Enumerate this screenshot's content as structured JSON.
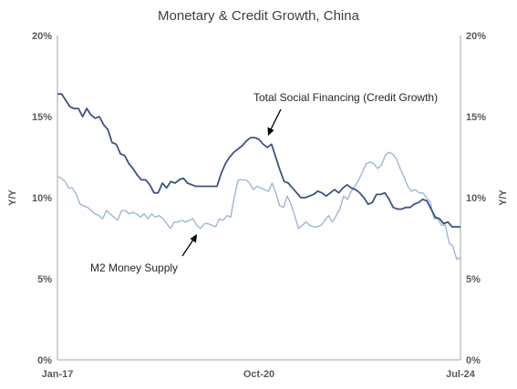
{
  "chart_data": {
    "type": "line",
    "title": "Monetary & Credit Growth, China",
    "ylabel_left": "Y/Y",
    "ylabel_right": "Y/Y",
    "ylim": [
      0,
      20
    ],
    "yticks": [
      0,
      5,
      10,
      15,
      20
    ],
    "ytick_labels": [
      "0%",
      "5%",
      "10%",
      "15%",
      "20%"
    ],
    "xlim": [
      "2017-01",
      "2024-07"
    ],
    "xticks": [
      "2017-01",
      "2020-10",
      "2024-07"
    ],
    "xtick_labels": [
      "Jan-17",
      "Oct-20",
      "Jul-24"
    ],
    "grid": false,
    "colors": {
      "tsf": "#3b5581",
      "m2": "#9fb6d9",
      "axis": "#a6a6a6",
      "text": "#595959"
    },
    "annotations": {
      "tsf": "Total Social Financing (Credit Growth)",
      "m2": "M2 Money Supply"
    },
    "series": [
      {
        "key": "tsf",
        "values": [
          16.4,
          16.4,
          16.0,
          15.6,
          15.5,
          15.5,
          15.0,
          15.5,
          15.1,
          14.9,
          15.0,
          14.5,
          14.2,
          13.4,
          13.3,
          12.7,
          12.6,
          12.1,
          11.8,
          11.4,
          11.1,
          11.1,
          10.8,
          10.3,
          10.3,
          10.9,
          10.6,
          11.0,
          10.9,
          11.1,
          11.2,
          10.9,
          10.8,
          10.7,
          10.7,
          10.7,
          10.7,
          10.7,
          10.7,
          11.5,
          12.1,
          12.5,
          12.8,
          13.0,
          13.2,
          13.5,
          13.7,
          13.7,
          13.6,
          13.3,
          13.1,
          13.3,
          12.5,
          11.7,
          11.0,
          10.9,
          10.6,
          10.3,
          10.0,
          10.0,
          10.1,
          10.2,
          10.4,
          10.3,
          10.1,
          10.3,
          10.5,
          10.3,
          10.6,
          10.8,
          10.6,
          10.5,
          10.3,
          10.0,
          9.6,
          9.7,
          10.2,
          10.2,
          10.3,
          9.9,
          9.4,
          9.3,
          9.3,
          9.4,
          9.4,
          9.6,
          9.7,
          9.9,
          9.8,
          9.3,
          8.8,
          8.7,
          8.4,
          8.5,
          8.2,
          8.2,
          8.2
        ]
      },
      {
        "key": "m2",
        "values": [
          11.3,
          11.2,
          11.0,
          10.6,
          10.6,
          10.2,
          9.6,
          9.5,
          9.4,
          9.2,
          9.0,
          8.9,
          8.7,
          9.2,
          9.0,
          8.8,
          8.6,
          9.2,
          9.2,
          9.0,
          9.1,
          9.0,
          8.8,
          9.0,
          8.7,
          9.0,
          8.8,
          8.9,
          8.7,
          8.4,
          8.1,
          8.5,
          8.5,
          8.6,
          8.5,
          8.6,
          8.7,
          8.3,
          8.1,
          8.4,
          8.4,
          8.3,
          8.2,
          8.7,
          8.6,
          8.9,
          8.8,
          10.1,
          11.1,
          11.1,
          11.1,
          10.9,
          10.5,
          10.7,
          10.6,
          10.5,
          10.4,
          10.9,
          10.3,
          9.5,
          9.4,
          10.1,
          9.6,
          8.9,
          8.1,
          8.3,
          8.5,
          8.3,
          8.2,
          8.2,
          8.3,
          8.6,
          8.9,
          8.5,
          8.9,
          9.3,
          10.1,
          9.9,
          10.4,
          10.7,
          11.1,
          11.6,
          12.1,
          12.2,
          12.1,
          11.8,
          12.0,
          12.6,
          12.8,
          12.7,
          12.4,
          11.8,
          11.3,
          10.7,
          10.4,
          10.5,
          10.3,
          10.3,
          10.0,
          9.7,
          8.7,
          8.7,
          8.3,
          8.3,
          7.2,
          7.0,
          6.2,
          6.3
        ]
      }
    ]
  }
}
